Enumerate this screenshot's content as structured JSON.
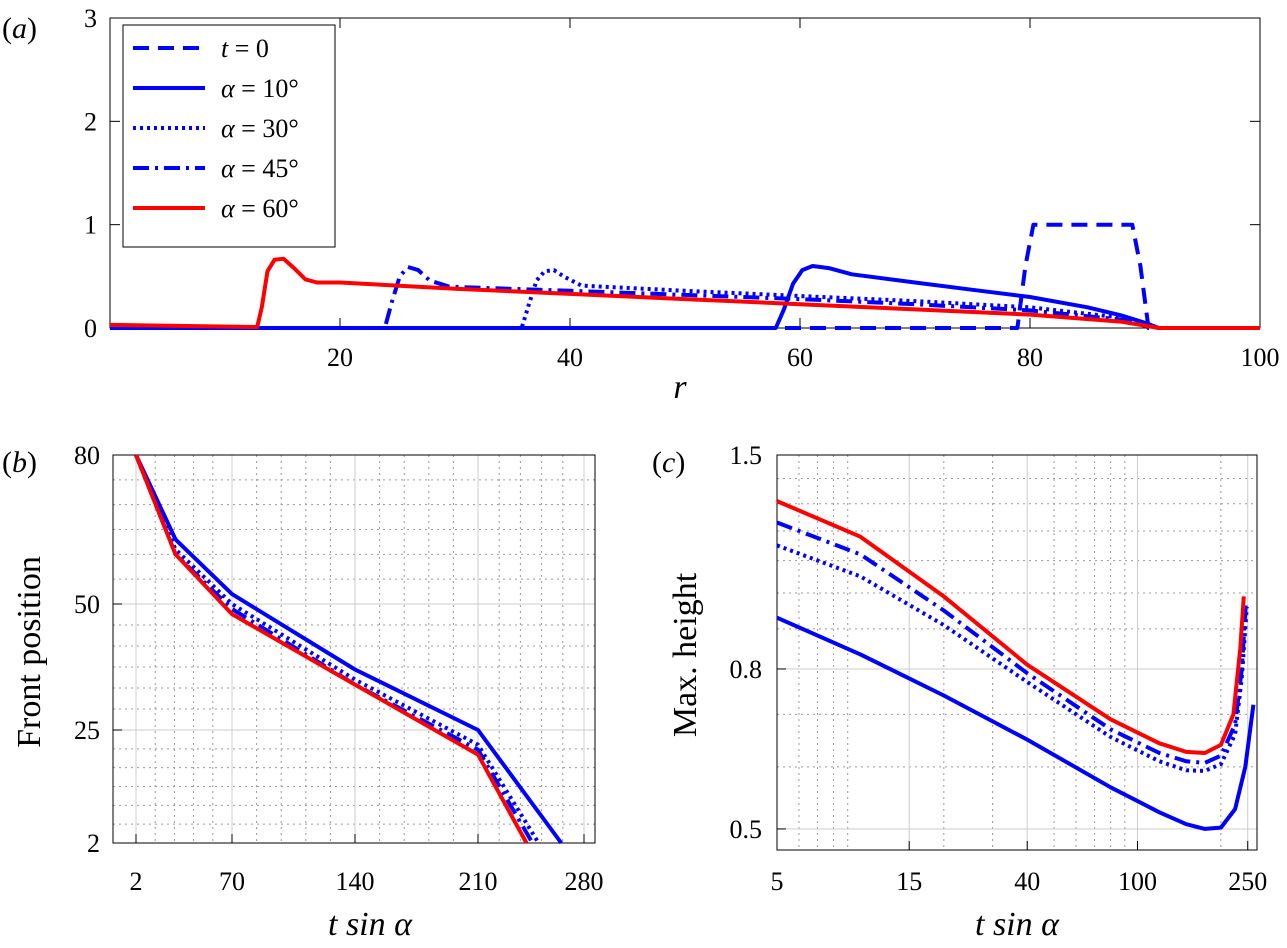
{
  "chart_data": [
    {
      "panel": "(a)",
      "type": "line",
      "xlabel": "r",
      "ylabel": "",
      "xlim": [
        0,
        100
      ],
      "ylim": [
        0,
        3
      ],
      "xticks": [
        20,
        40,
        60,
        80,
        100
      ],
      "yticks": [
        0,
        1,
        2,
        3
      ],
      "grid": false,
      "legend_position": "top-left",
      "series": [
        {
          "name": "t = 0",
          "color": "#0000ff",
          "dash": "dashed",
          "x": [
            0,
            78.9,
            79.6,
            80.3,
            88.9,
            89.6,
            90.3,
            100
          ],
          "y": [
            0,
            0,
            0.6,
            1.0,
            1.0,
            0.6,
            0,
            0
          ]
        },
        {
          "name": "α = 10°",
          "color": "#0000ff",
          "dash": "solid",
          "x": [
            0,
            57.9,
            58.6,
            59.4,
            60.2,
            61.1,
            62.5,
            64.5,
            70,
            75,
            80,
            85,
            88,
            90,
            91.2,
            100
          ],
          "y": [
            0,
            0,
            0.18,
            0.43,
            0.56,
            0.6,
            0.58,
            0.52,
            0.44,
            0.37,
            0.3,
            0.2,
            0.12,
            0.05,
            0,
            0
          ]
        },
        {
          "name": "α = 30°",
          "color": "#0000ff",
          "dash": "dotted",
          "x": [
            0,
            35.8,
            36.4,
            37.1,
            37.8,
            38.6,
            39.6,
            41,
            50,
            60,
            70,
            80,
            88,
            91.2,
            100
          ],
          "y": [
            0,
            0,
            0.22,
            0.46,
            0.55,
            0.56,
            0.49,
            0.41,
            0.36,
            0.31,
            0.26,
            0.2,
            0.1,
            0,
            0
          ]
        },
        {
          "name": "α = 45°",
          "color": "#0000ff",
          "dash": "dashdot",
          "x": [
            0,
            23.9,
            24.5,
            25.2,
            25.9,
            26.8,
            27.8,
            29.5,
            40,
            50,
            60,
            70,
            80,
            88,
            91.2,
            100
          ],
          "y": [
            0,
            0,
            0.25,
            0.5,
            0.59,
            0.56,
            0.46,
            0.4,
            0.36,
            0.32,
            0.28,
            0.23,
            0.17,
            0.08,
            0,
            0
          ]
        },
        {
          "name": "α = 60°",
          "color": "#ff0000",
          "dash": "solid",
          "x": [
            0,
            12.8,
            13.2,
            13.7,
            14.3,
            15.1,
            16,
            17,
            18,
            20,
            30,
            40,
            50,
            60,
            70,
            80,
            88,
            91.2,
            100
          ],
          "y": [
            0.03,
            0.01,
            0.2,
            0.55,
            0.66,
            0.67,
            0.58,
            0.47,
            0.44,
            0.44,
            0.38,
            0.33,
            0.28,
            0.23,
            0.18,
            0.13,
            0.06,
            0,
            0
          ]
        }
      ]
    },
    {
      "panel": "(b)",
      "type": "line",
      "xlabel": "t sin α",
      "ylabel": "Front position",
      "xticks": [
        2,
        70,
        140,
        210,
        280
      ],
      "yticks": [
        2,
        25,
        50,
        80
      ],
      "grid": true,
      "series": [
        {
          "name": "α = 10°",
          "color": "#0000ff",
          "dash": "solid",
          "x": [
            2,
            30,
            70,
            140,
            210,
            265
          ],
          "y": [
            80,
            63,
            52,
            37,
            25,
            2
          ]
        },
        {
          "name": "α = 30°",
          "color": "#0000ff",
          "dash": "dotted",
          "x": [
            2,
            30,
            70,
            140,
            210,
            250
          ],
          "y": [
            80,
            61,
            50,
            35,
            22,
            2
          ]
        },
        {
          "name": "α = 45°",
          "color": "#0000ff",
          "dash": "dashdot",
          "x": [
            2,
            30,
            70,
            140,
            210,
            246
          ],
          "y": [
            80,
            60,
            49,
            34,
            21,
            2
          ]
        },
        {
          "name": "α = 60°",
          "color": "#ff0000",
          "dash": "solid",
          "x": [
            2,
            30,
            70,
            140,
            210,
            242
          ],
          "y": [
            80,
            60,
            48,
            34,
            20,
            2
          ]
        }
      ]
    },
    {
      "panel": "(c)",
      "type": "line",
      "xlabel": "t sin α",
      "ylabel": "Max. height",
      "xscale": "log",
      "yscale": "log",
      "xlim": [
        5,
        270
      ],
      "ylim": [
        0.47,
        1.5
      ],
      "xticks": [
        5,
        15,
        40,
        100,
        250
      ],
      "yticks": [
        0.5,
        0.8,
        1.5
      ],
      "grid": true,
      "series": [
        {
          "name": "α = 10°",
          "color": "#0000ff",
          "dash": "solid",
          "x": [
            5,
            10,
            20,
            40,
            80,
            120,
            150,
            175,
            200,
            225,
            245,
            262
          ],
          "y": [
            0.93,
            0.835,
            0.74,
            0.65,
            0.565,
            0.525,
            0.507,
            0.5,
            0.502,
            0.53,
            0.6,
            0.72
          ]
        },
        {
          "name": "α = 30°",
          "color": "#0000ff",
          "dash": "dotted",
          "x": [
            5,
            10,
            20,
            40,
            80,
            120,
            150,
            175,
            200,
            225,
            238,
            248
          ],
          "y": [
            1.15,
            1.05,
            0.91,
            0.77,
            0.655,
            0.61,
            0.594,
            0.593,
            0.605,
            0.66,
            0.78,
            0.96
          ]
        },
        {
          "name": "α = 45°",
          "color": "#0000ff",
          "dash": "dashdot",
          "x": [
            5,
            10,
            20,
            40,
            80,
            120,
            150,
            175,
            200,
            225,
            238,
            246
          ],
          "y": [
            1.23,
            1.12,
            0.95,
            0.79,
            0.67,
            0.625,
            0.61,
            0.607,
            0.62,
            0.68,
            0.8,
            0.97
          ]
        },
        {
          "name": "α = 60°",
          "color": "#ff0000",
          "dash": "solid",
          "x": [
            5,
            10,
            20,
            40,
            80,
            120,
            150,
            175,
            200,
            222,
            235,
            242
          ],
          "y": [
            1.31,
            1.18,
            0.99,
            0.81,
            0.69,
            0.643,
            0.627,
            0.625,
            0.64,
            0.7,
            0.85,
            0.99
          ]
        }
      ]
    }
  ]
}
